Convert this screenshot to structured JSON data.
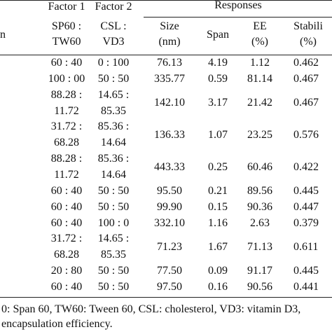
{
  "table": {
    "group_headers": [
      "Factor 1",
      "Factor 2",
      "Responses"
    ],
    "column_headers": [
      [
        "n"
      ],
      [
        "SP60 :",
        "TW60"
      ],
      [
        "CSL :",
        "VD3"
      ],
      [
        "Size",
        "(nm)"
      ],
      [
        "Span"
      ],
      [
        "EE",
        "(%)"
      ],
      [
        "Stabili",
        "(%)"
      ]
    ],
    "rows": [
      [
        [
          "60 : 40"
        ],
        [
          "0 : 100"
        ],
        "76.13",
        "4.19",
        "1.12",
        "0.462"
      ],
      [
        [
          "100 : 00"
        ],
        [
          "50 : 50"
        ],
        "335.77",
        "0.59",
        "81.14",
        "0.467"
      ],
      [
        [
          "88.28 :",
          "11.72"
        ],
        [
          "14.65 :",
          "85.35"
        ],
        "142.10",
        "3.17",
        "21.42",
        "0.467"
      ],
      [
        [
          "31.72 :",
          "68.28"
        ],
        [
          "85.36 :",
          "14.64"
        ],
        "136.33",
        "1.07",
        "23.25",
        "0.576"
      ],
      [
        [
          "88.28 :",
          "11.72"
        ],
        [
          "85.36 :",
          "14.64"
        ],
        "443.33",
        "0.25",
        "60.46",
        "0.422"
      ],
      [
        [
          "60 : 40"
        ],
        [
          "50 : 50"
        ],
        "95.50",
        "0.21",
        "89.56",
        "0.445"
      ],
      [
        [
          "60 : 40"
        ],
        [
          "50 : 50"
        ],
        "99.90",
        "0.15",
        "90.36",
        "0.447"
      ],
      [
        [
          "60 : 40"
        ],
        [
          "100 : 0"
        ],
        "332.10",
        "1.16",
        "2.63",
        "0.379"
      ],
      [
        [
          "31.72 :",
          "68.28"
        ],
        [
          "14.65 :",
          "85.35"
        ],
        "71.23",
        "1.67",
        "71.13",
        "0.611"
      ],
      [
        [
          "20 : 80"
        ],
        [
          "50 : 50"
        ],
        "77.50",
        "0.09",
        "91.17",
        "0.445"
      ],
      [
        [
          "60 : 40"
        ],
        [
          "50 : 50"
        ],
        "97.50",
        "0.16",
        "90.56",
        "0.441"
      ]
    ]
  },
  "footnote": [
    "0: Span 60, TW60: Tween 60, CSL: cholesterol, VD3: vitamin D3,",
    "encapsulation efficiency."
  ]
}
